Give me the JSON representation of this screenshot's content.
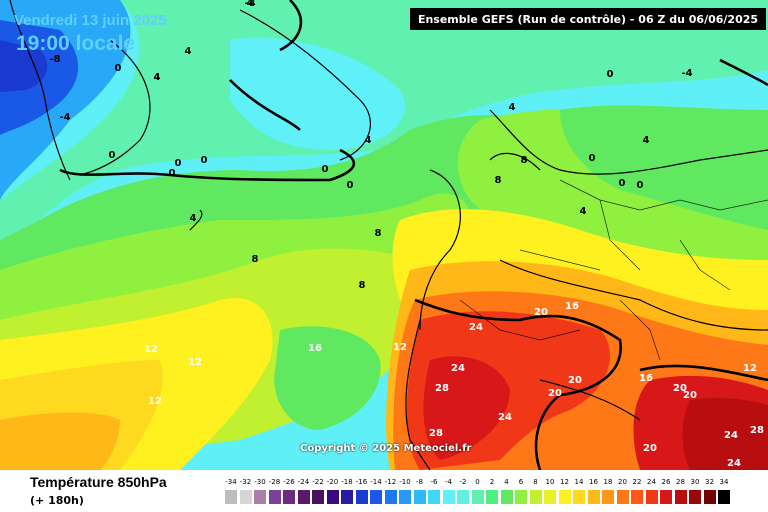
{
  "header": {
    "model_run": "Ensemble GEFS  (Run de contrôle)  -  06 Z du 06/06/2025",
    "date": "Vendredi 13 juin 2025",
    "time": "19:00 locale"
  },
  "footer": {
    "title": "Température 850hPa",
    "subtitle": "(+ 180h)",
    "copyright": "Copyright © 2025 Meteociel.fr"
  },
  "legend": {
    "labels": [
      "-34",
      "-32",
      "-30",
      "-28",
      "-26",
      "-24",
      "-22",
      "-20",
      "-18",
      "-16",
      "-14",
      "-12",
      "-10",
      "-8",
      "-6",
      "-4",
      "-2",
      "0",
      "2",
      "4",
      "6",
      "8",
      "10",
      "12",
      "14",
      "16",
      "18",
      "20",
      "22",
      "24",
      "26",
      "28",
      "30",
      "32",
      "34"
    ],
    "colors": [
      "#bdbdbd",
      "#d6d6d6",
      "#a880a8",
      "#80409a",
      "#6e2a80",
      "#5a1a6a",
      "#4a1060",
      "#3a0880",
      "#2a1aa0",
      "#1a3ad0",
      "#1a58e8",
      "#1e78f0",
      "#2898f8",
      "#30b8f8",
      "#40d8f8",
      "#60f0f8",
      "#60f0e0",
      "#60f0b0",
      "#50f080",
      "#60e860",
      "#90f040",
      "#c0f030",
      "#e8f028",
      "#fff020",
      "#ffd820",
      "#ffb818",
      "#ff9818",
      "#ff7818",
      "#ff5818",
      "#f03818",
      "#d81818",
      "#b80e10",
      "#980808",
      "#700404",
      "#000000"
    ]
  },
  "map_labels": [
    {
      "text": "-8",
      "color": "#000"
    },
    {
      "text": "-4",
      "color": "#000"
    },
    {
      "text": "0",
      "color": "#000"
    },
    {
      "text": "4",
      "color": "#000"
    },
    {
      "text": "4",
      "color": "#000"
    },
    {
      "text": "4",
      "color": "#000"
    },
    {
      "text": "0",
      "color": "#000"
    },
    {
      "text": "0",
      "color": "#000"
    },
    {
      "text": "0",
      "color": "#000"
    },
    {
      "text": "0",
      "color": "#000"
    },
    {
      "text": "4",
      "color": "#000"
    },
    {
      "text": "0",
      "color": "#000"
    },
    {
      "text": "4",
      "color": "#000"
    },
    {
      "text": "4",
      "color": "#000"
    },
    {
      "text": "8",
      "color": "#000"
    },
    {
      "text": "8",
      "color": "#000"
    },
    {
      "text": "8",
      "color": "#000"
    },
    {
      "text": "8",
      "color": "#000"
    },
    {
      "text": "8",
      "color": "#000"
    },
    {
      "text": "0",
      "color": "#000"
    },
    {
      "text": "-4",
      "color": "#000"
    },
    {
      "text": "4",
      "color": "#000"
    },
    {
      "text": "0",
      "color": "#000"
    },
    {
      "text": "4",
      "color": "#000"
    },
    {
      "text": "0",
      "color": "#000"
    },
    {
      "text": "4",
      "color": "#000"
    },
    {
      "text": "0",
      "color": "#000"
    },
    {
      "text": "0",
      "color": "#000"
    },
    {
      "text": "12",
      "color": "#fff"
    },
    {
      "text": "12",
      "color": "#fff"
    },
    {
      "text": "12",
      "color": "#fff"
    },
    {
      "text": "16",
      "color": "#fff"
    },
    {
      "text": "12",
      "color": "#fff"
    },
    {
      "text": "24",
      "color": "#fff"
    },
    {
      "text": "20",
      "color": "#fff"
    },
    {
      "text": "16",
      "color": "#fff"
    },
    {
      "text": "24",
      "color": "#fff"
    },
    {
      "text": "28",
      "color": "#fff"
    },
    {
      "text": "24",
      "color": "#fff"
    },
    {
      "text": "20",
      "color": "#fff"
    },
    {
      "text": "20",
      "color": "#fff"
    },
    {
      "text": "16",
      "color": "#fff"
    },
    {
      "text": "20",
      "color": "#fff"
    },
    {
      "text": "20",
      "color": "#fff"
    },
    {
      "text": "24",
      "color": "#fff"
    },
    {
      "text": "28",
      "color": "#fff"
    },
    {
      "text": "20",
      "color": "#fff"
    },
    {
      "text": "28",
      "color": "#fff"
    },
    {
      "text": "24",
      "color": "#fff"
    },
    {
      "text": "12",
      "color": "#fff"
    },
    {
      "text": "-4",
      "color": "#000"
    }
  ]
}
